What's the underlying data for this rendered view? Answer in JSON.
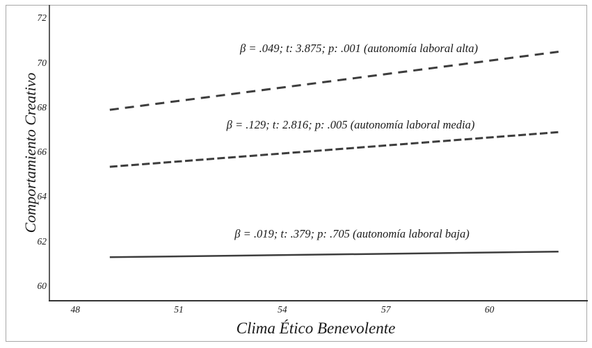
{
  "figure": {
    "colors": {
      "background": "#ffffff",
      "frame_border": "#a8a8a8",
      "axis_spine": "#333333",
      "line": "#3d3d3d",
      "text": "#1a1a1a"
    }
  },
  "chart_data": {
    "type": "line",
    "title": "",
    "xlabel": "Clima Ético Benevolente",
    "ylabel": "Comportamiento Creativo",
    "xlim": [
      47.25,
      62.85
    ],
    "ylim": [
      59.35,
      72.6
    ],
    "x_ticks": [
      "48",
      "51",
      "54",
      "57",
      "60"
    ],
    "x_tick_values": [
      48,
      51,
      54,
      57,
      60
    ],
    "y_ticks": [
      "60",
      "62",
      "64",
      "66",
      "68",
      "70",
      "72"
    ],
    "y_tick_values": [
      60,
      62,
      64,
      66,
      68,
      70,
      72
    ],
    "grid": false,
    "legend_position": "none",
    "series": [
      {
        "name": "autonomía laboral alta",
        "style": "dashed-long",
        "x": [
          49,
          62
        ],
        "y": [
          67.9,
          70.5
        ],
        "beta": ".049",
        "t": "3.875",
        "p": ".001"
      },
      {
        "name": "autonomía laboral media",
        "style": "dashed-dense",
        "x": [
          49,
          62
        ],
        "y": [
          65.35,
          66.9
        ],
        "beta": ".129",
        "t": "2.816",
        "p": ".005"
      },
      {
        "name": "autonomía laboral baja",
        "style": "solid",
        "x": [
          49,
          62
        ],
        "y": [
          61.3,
          61.55
        ],
        "beta": ".019",
        "t": ".379",
        "p": ".705"
      }
    ],
    "annotations": [
      {
        "text": "β = .049; t: 3.875; p: .001 (autonomía laboral alta)"
      },
      {
        "text": "β = .129; t: 2.816; p: .005 (autonomía laboral media)"
      },
      {
        "text": "β = .019; t: .379; p: .705 (autonomía laboral baja)"
      }
    ]
  }
}
